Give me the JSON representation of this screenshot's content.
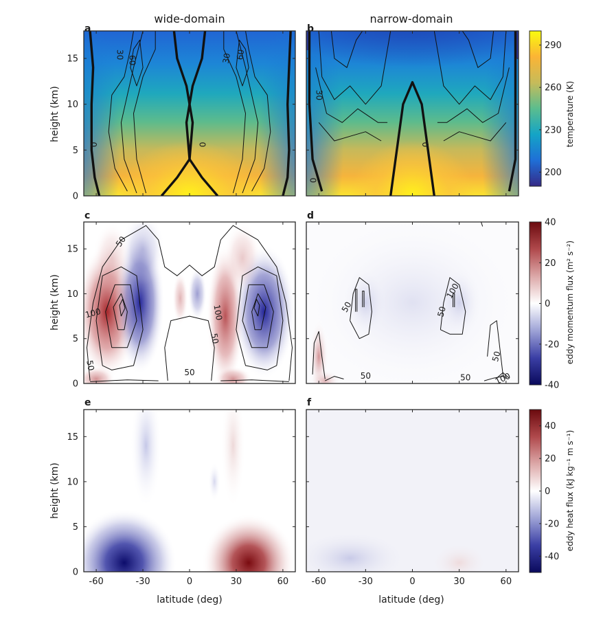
{
  "figure": {
    "column_titles": [
      "wide-domain",
      "narrow-domain"
    ],
    "panel_letters": [
      "a",
      "b",
      "c",
      "d",
      "e",
      "f"
    ]
  },
  "chart_data": [
    {
      "panel": "a",
      "type": "heatmap",
      "title": "wide-domain",
      "ylabel": "height (km)",
      "xlim": [
        -68,
        68
      ],
      "ylim": [
        0,
        18
      ],
      "xticks": [
        -60,
        -30,
        0,
        30,
        60
      ],
      "yticks": [
        0,
        5,
        10,
        15
      ],
      "field": "temperature (K)",
      "contour_labels": [
        "30",
        "60",
        "30",
        "60",
        "0",
        "0"
      ]
    },
    {
      "panel": "b",
      "type": "heatmap",
      "title": "narrow-domain",
      "xlim": [
        -68,
        68
      ],
      "ylim": [
        0,
        18
      ],
      "xticks": [
        -60,
        -30,
        0,
        30,
        60
      ],
      "yticks": [
        0,
        5,
        10,
        15
      ],
      "field": "temperature (K)",
      "contour_labels": [
        "30",
        "0",
        "0"
      ]
    },
    {
      "panel": "c",
      "type": "heatmap",
      "ylabel": "height (km)",
      "xlim": [
        -68,
        68
      ],
      "ylim": [
        0,
        18
      ],
      "xticks": [
        -60,
        -30,
        0,
        30,
        60
      ],
      "yticks": [
        0,
        5,
        10,
        15
      ],
      "field": "eddy momentum flux",
      "contour_labels": [
        "50",
        "100",
        "50",
        "100",
        "50",
        "50"
      ]
    },
    {
      "panel": "d",
      "type": "heatmap",
      "xlim": [
        -68,
        68
      ],
      "ylim": [
        0,
        18
      ],
      "xticks": [
        -60,
        -30,
        0,
        30,
        60
      ],
      "yticks": [
        0,
        5,
        10,
        15
      ],
      "field": "eddy momentum flux",
      "contour_labels": [
        "50",
        "50",
        "100",
        "50",
        "50",
        "50",
        "100"
      ]
    },
    {
      "panel": "e",
      "type": "heatmap",
      "xlabel": "latitude (deg)",
      "ylabel": "height (km)",
      "xlim": [
        -68,
        68
      ],
      "ylim": [
        0,
        18
      ],
      "xticks": [
        -60,
        -30,
        0,
        30,
        60
      ],
      "yticks": [
        0,
        5,
        10,
        15
      ],
      "field": "eddy heat flux"
    },
    {
      "panel": "f",
      "type": "heatmap",
      "xlabel": "latitude (deg)",
      "xlim": [
        -68,
        68
      ],
      "ylim": [
        0,
        18
      ],
      "xticks": [
        -60,
        -30,
        0,
        30,
        60
      ],
      "yticks": [
        0,
        5,
        10,
        15
      ],
      "field": "eddy heat flux"
    }
  ],
  "colorbars": [
    {
      "label": "temperature (K)",
      "range": [
        190,
        300
      ],
      "ticks": [
        200,
        230,
        260,
        290
      ],
      "colors": [
        "#352a87",
        "#1f6fd7",
        "#14a4c6",
        "#5bbd8e",
        "#c6bb5a",
        "#fbb435",
        "#f9fb0e"
      ]
    },
    {
      "label": "eddy momentum flux (m² s⁻²)",
      "range": [
        -40,
        40
      ],
      "ticks": [
        -40,
        -20,
        0,
        20,
        40
      ],
      "colors": [
        "#0a0a5c",
        "#3b3fa5",
        "#9ea3d6",
        "#ffffff",
        "#dca8a8",
        "#b0494c",
        "#6b0a0e"
      ]
    },
    {
      "label": "eddy heat flux (kJ kg⁻¹ m s⁻¹)",
      "range": [
        -50,
        50
      ],
      "ticks": [
        -40,
        -20,
        0,
        20,
        40
      ],
      "colors": [
        "#0a0a5c",
        "#3b3fa5",
        "#9ea3d6",
        "#ffffff",
        "#dca8a8",
        "#b0494c",
        "#6b0a0e"
      ]
    }
  ],
  "colors": {
    "contour": "#111111",
    "axis": "#262626"
  }
}
